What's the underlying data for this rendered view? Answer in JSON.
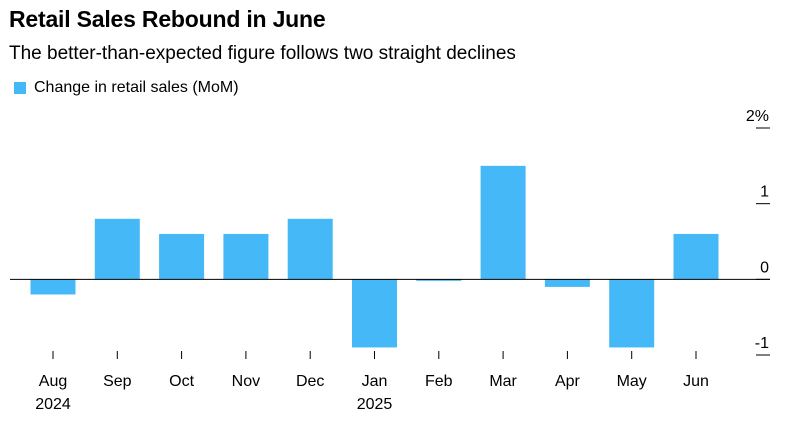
{
  "title": "Retail Sales Rebound in June",
  "subtitle": "The better-than-expected figure follows two straight declines",
  "legend": {
    "label": "Change in retail sales (MoM)",
    "color": "#45b8f8"
  },
  "axis_color": "#000000",
  "chart_data": {
    "type": "bar",
    "title": "Retail Sales Rebound in June",
    "subtitle": "The better-than-expected figure follows two straight declines",
    "categories": [
      "Aug",
      "Sep",
      "Oct",
      "Nov",
      "Dec",
      "Jan",
      "Feb",
      "Mar",
      "Apr",
      "May",
      "Jun"
    ],
    "year_labels": [
      "2024",
      "",
      "",
      "",
      "",
      "2025",
      "",
      "",
      "",
      "",
      ""
    ],
    "series": [
      {
        "name": "Change in retail sales (MoM)",
        "color": "#45b8f8",
        "values": [
          -0.2,
          0.8,
          0.6,
          0.6,
          0.8,
          -0.9,
          0.0,
          1.5,
          -0.1,
          -0.9,
          0.6
        ]
      }
    ],
    "ylim": [
      -1,
      2
    ],
    "yticks": [
      {
        "value": 2,
        "label": "2%"
      },
      {
        "value": 1,
        "label": "1"
      },
      {
        "value": 0,
        "label": "0"
      },
      {
        "value": -1,
        "label": "-1"
      }
    ],
    "y_axis_side": "right",
    "zero_line": true,
    "grid": false,
    "legend_position": "top-left"
  }
}
